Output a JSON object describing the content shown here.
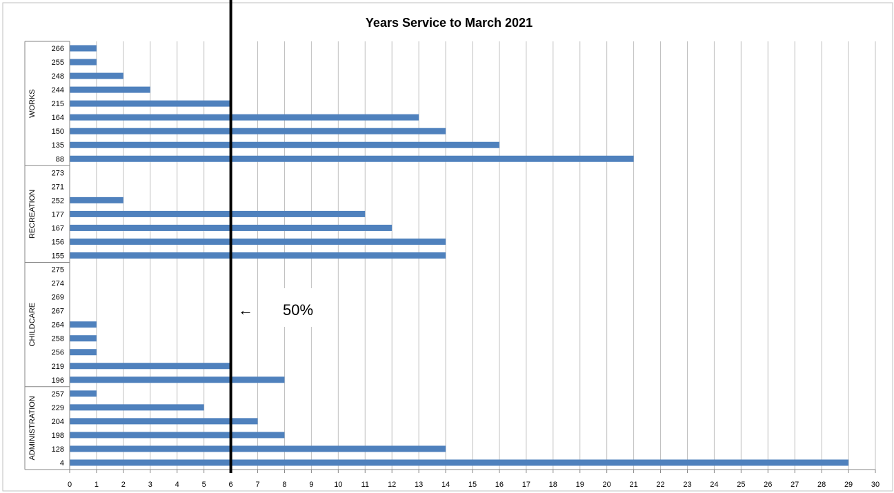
{
  "chart_data": {
    "type": "bar",
    "orientation": "horizontal",
    "title": "Years Service to March 2021",
    "xlabel": "",
    "ylabel": "",
    "xlim": [
      0,
      30
    ],
    "x_ticks": [
      0,
      1,
      2,
      3,
      4,
      5,
      6,
      7,
      8,
      9,
      10,
      11,
      12,
      13,
      14,
      15,
      16,
      17,
      18,
      19,
      20,
      21,
      22,
      23,
      24,
      25,
      26,
      27,
      28,
      29,
      30
    ],
    "grid": "vertical",
    "bar_color": "#4F81BD",
    "groups": [
      {
        "name": "WORKS",
        "bars": [
          {
            "label": "266",
            "value": 1
          },
          {
            "label": "255",
            "value": 1
          },
          {
            "label": "248",
            "value": 2
          },
          {
            "label": "244",
            "value": 3
          },
          {
            "label": "215",
            "value": 6
          },
          {
            "label": "164",
            "value": 13
          },
          {
            "label": "150",
            "value": 14
          },
          {
            "label": "135",
            "value": 16
          },
          {
            "label": "88",
            "value": 21
          }
        ]
      },
      {
        "name": "RECREATION",
        "bars": [
          {
            "label": "273",
            "value": 0
          },
          {
            "label": "271",
            "value": 0
          },
          {
            "label": "252",
            "value": 2
          },
          {
            "label": "177",
            "value": 11
          },
          {
            "label": "167",
            "value": 12
          },
          {
            "label": "156",
            "value": 14
          },
          {
            "label": "155",
            "value": 14
          }
        ]
      },
      {
        "name": "CHILDCARE",
        "bars": [
          {
            "label": "275",
            "value": 0
          },
          {
            "label": "274",
            "value": 0
          },
          {
            "label": "269",
            "value": 0
          },
          {
            "label": "267",
            "value": 0
          },
          {
            "label": "264",
            "value": 1
          },
          {
            "label": "258",
            "value": 1
          },
          {
            "label": "256",
            "value": 1
          },
          {
            "label": "219",
            "value": 6
          },
          {
            "label": "196",
            "value": 8
          }
        ]
      },
      {
        "name": "ADMINISTRATION",
        "bars": [
          {
            "label": "257",
            "value": 1
          },
          {
            "label": "229",
            "value": 5
          },
          {
            "label": "204",
            "value": 7
          },
          {
            "label": "198",
            "value": 8
          },
          {
            "label": "128",
            "value": 14
          },
          {
            "label": "4",
            "value": 29
          }
        ]
      }
    ],
    "reference_line": {
      "value": 6,
      "label": "50%",
      "arrow": "←"
    }
  }
}
